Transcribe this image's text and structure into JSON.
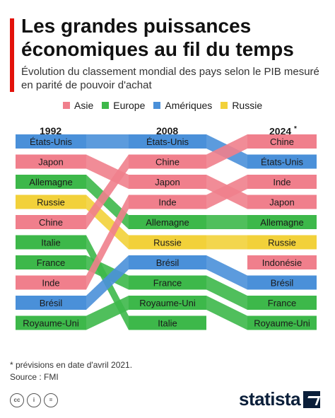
{
  "title": "Les grandes puissances économiques au fil du temps",
  "subtitle": "Évolution du classement mondial des pays selon le PIB mesuré en parité de pouvoir d'achat",
  "legend": [
    {
      "label": "Asie",
      "color": "#f07f8c"
    },
    {
      "label": "Europe",
      "color": "#3db84a"
    },
    {
      "label": "Amériques",
      "color": "#4a90d9"
    },
    {
      "label": "Russie",
      "color": "#f2d13a"
    }
  ],
  "years": [
    "1992",
    "2008",
    "2024"
  ],
  "year_marker": "*",
  "chart_data": {
    "type": "table",
    "columns": [
      "1992",
      "2008",
      "2024*"
    ],
    "regions": {
      "Asie": "#f07f8c",
      "Europe": "#3db84a",
      "Amériques": "#4a90d9",
      "Russie": "#f2d13a"
    },
    "countries": [
      {
        "name": "États-Unis",
        "region": "Amériques",
        "ranks": [
          1,
          1,
          2
        ]
      },
      {
        "name": "Japon",
        "region": "Asie",
        "ranks": [
          2,
          3,
          4
        ]
      },
      {
        "name": "Allemagne",
        "region": "Europe",
        "ranks": [
          3,
          5,
          5
        ]
      },
      {
        "name": "Russie",
        "region": "Russie",
        "ranks": [
          4,
          6,
          6
        ]
      },
      {
        "name": "Chine",
        "region": "Asie",
        "ranks": [
          5,
          2,
          1
        ]
      },
      {
        "name": "Italie",
        "region": "Europe",
        "ranks": [
          6,
          10,
          null
        ]
      },
      {
        "name": "France",
        "region": "Europe",
        "ranks": [
          7,
          8,
          9
        ]
      },
      {
        "name": "Inde",
        "region": "Asie",
        "ranks": [
          8,
          4,
          3
        ]
      },
      {
        "name": "Brésil",
        "region": "Amériques",
        "ranks": [
          9,
          7,
          8
        ]
      },
      {
        "name": "Royaume-Uni",
        "region": "Europe",
        "ranks": [
          10,
          9,
          10
        ]
      },
      {
        "name": "Indonésie",
        "region": "Asie",
        "ranks": [
          null,
          null,
          7
        ]
      }
    ]
  },
  "note": "* prévisions en date d'avril 2021.",
  "source": "Source : FMI",
  "brand": "statista"
}
